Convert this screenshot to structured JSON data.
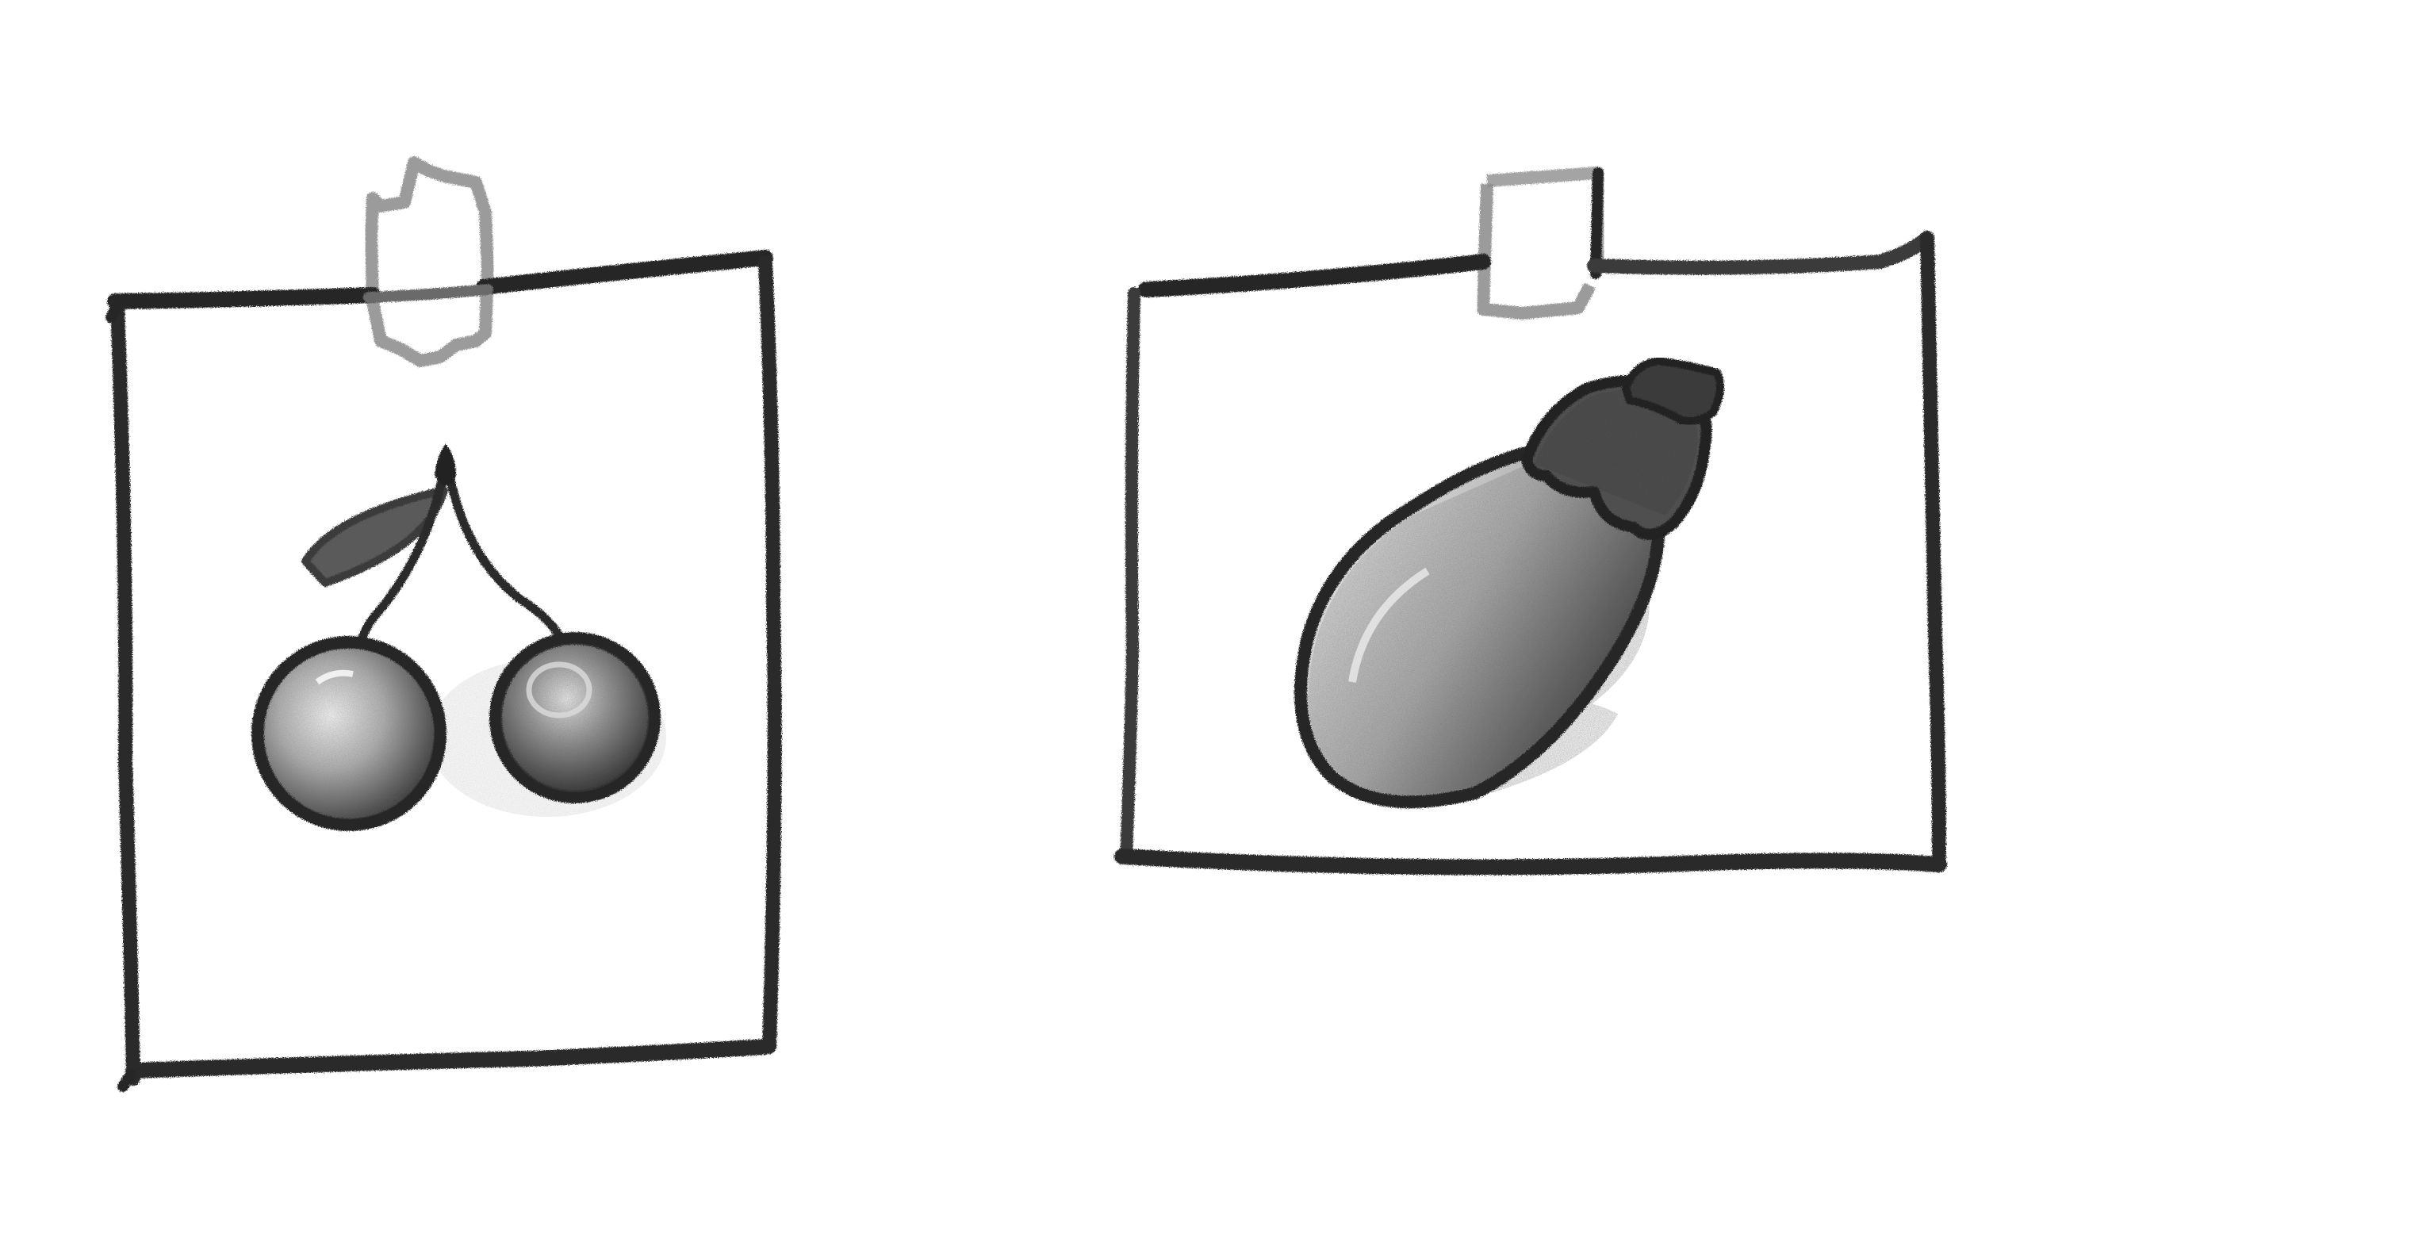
{
  "canvas": {
    "background_color": "#ffffff",
    "stroke_color": "#262626",
    "shade_color": "#7a7a7a",
    "light_shade_color": "#c4c4c4"
  },
  "cards": [
    {
      "subject": "cherries",
      "icon": "cherries-icon",
      "attachment": "tape-strip"
    },
    {
      "subject": "eggplant",
      "icon": "eggplant-icon",
      "attachment": "tape-strip"
    }
  ]
}
